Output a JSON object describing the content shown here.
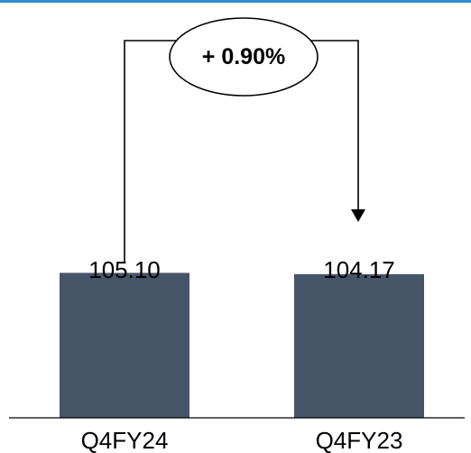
{
  "chart_data": {
    "type": "bar",
    "categories": [
      "Q4FY24",
      "Q4FY23"
    ],
    "values": [
      105.1,
      104.17
    ],
    "value_labels": [
      "105.10",
      "104.17"
    ],
    "annotation": "+ 0.90%",
    "ylim": [
      0,
      106
    ],
    "grid": false,
    "legend": "none",
    "colors": {
      "bar": "#465468",
      "top_rule": "#2f8fcf",
      "ink": "#000000"
    }
  }
}
